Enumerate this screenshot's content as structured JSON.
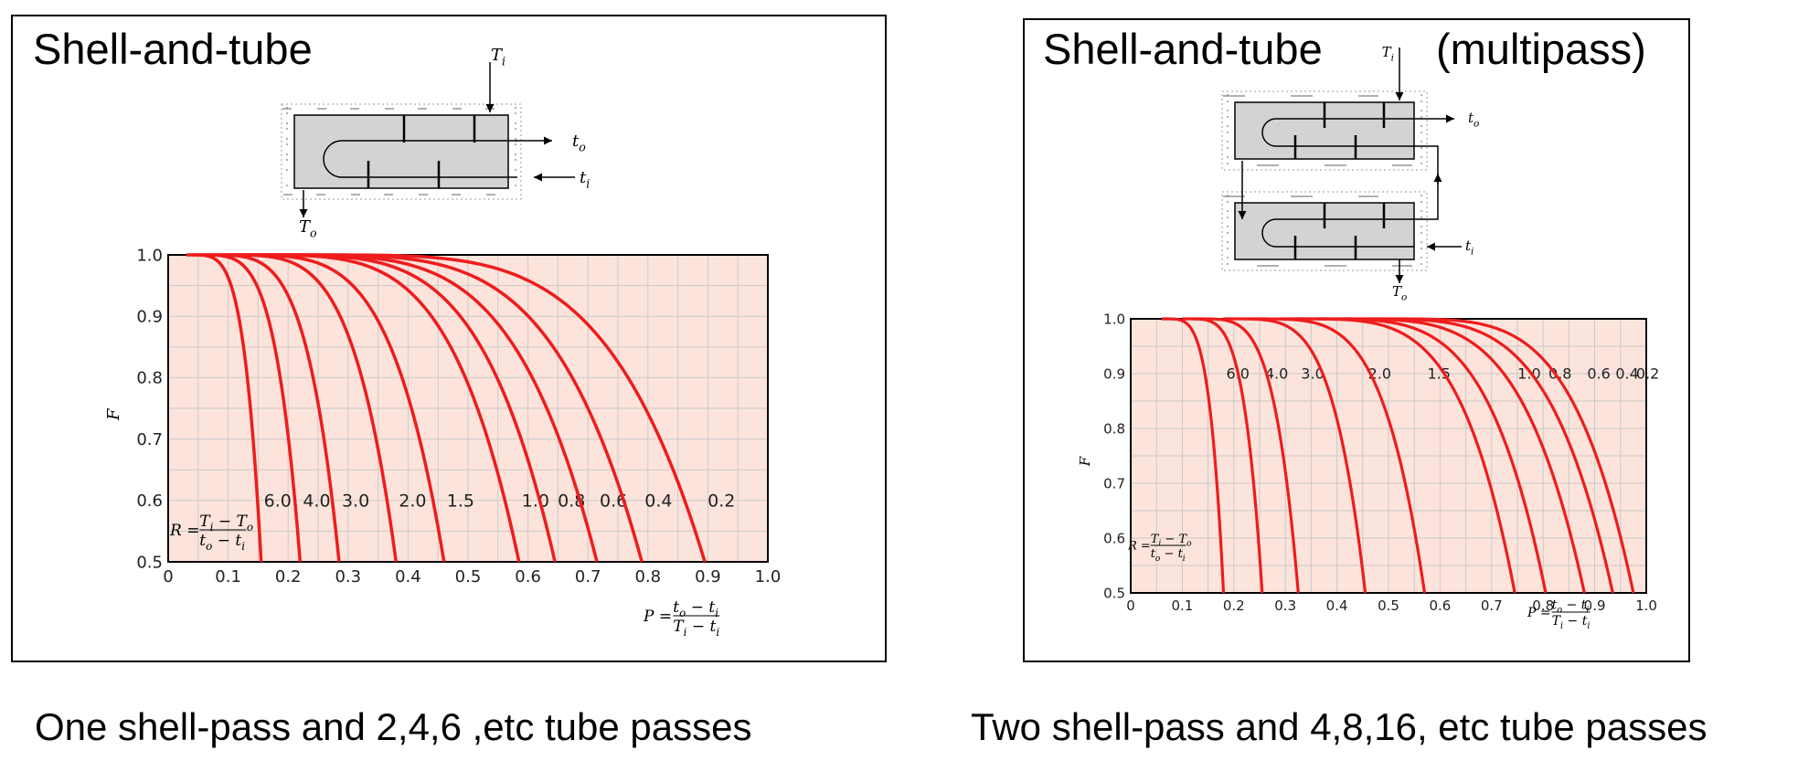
{
  "panels": {
    "left": {
      "title": "Shell-and-tube",
      "caption": "One shell-pass and 2,4,6 ,etc tube passes",
      "diagram": {
        "Ti": "T",
        "Ti_sub": "i",
        "To": "T",
        "To_sub": "o",
        "to": "t",
        "to_sub": "o",
        "ti": "t",
        "ti_sub": "i"
      }
    },
    "right": {
      "title": "Shell-and-tube",
      "title_suffix": "(multipass)",
      "caption": "Two shell-pass and 4,8,16, etc tube passes",
      "diagram": {
        "Ti": "T",
        "Ti_sub": "i",
        "To": "T",
        "To_sub": "o",
        "to": "t",
        "to_sub": "o",
        "ti": "t",
        "ti_sub": "i"
      }
    }
  },
  "colors": {
    "curve": "#ee1c1c",
    "plot_bg": "#fce4dc",
    "grid": "#c9c9c9",
    "shell_fill": "#d3d3d3"
  },
  "chart_data": [
    {
      "type": "line",
      "ylabel": "F",
      "xlim": [
        0,
        1.0
      ],
      "ylim": [
        0.5,
        1.0
      ],
      "xticks": [
        "0",
        "0.1",
        "0.2",
        "0.3",
        "0.4",
        "0.5",
        "0.6",
        "0.7",
        "0.8",
        "0.9",
        "1.0"
      ],
      "yticks": [
        "0.5",
        "0.6",
        "0.7",
        "0.8",
        "0.9",
        "1.0"
      ],
      "grid": true,
      "r_formula": {
        "lhs": "R =",
        "num": "T",
        "num_sub1": "i",
        "num_mid": " − T",
        "num_sub2": "o",
        "den": "t",
        "den_sub1": "o",
        "den_mid": " − t",
        "den_sub2": "i"
      },
      "p_formula": {
        "lhs": "P =",
        "num": "t",
        "num_sub1": "o",
        "num_mid": " − t",
        "num_sub2": "i",
        "den": "T",
        "den_sub1": "i",
        "den_mid": " − t",
        "den_sub2": "i"
      },
      "series": [
        {
          "name": "6.0",
          "start": 0.03,
          "end": 0.155
        },
        {
          "name": "4.0",
          "start": 0.04,
          "end": 0.22
        },
        {
          "name": "3.0",
          "start": 0.05,
          "end": 0.285
        },
        {
          "name": "2.0",
          "start": 0.07,
          "end": 0.38
        },
        {
          "name": "1.5",
          "start": 0.08,
          "end": 0.46
        },
        {
          "name": "1.0",
          "start": 0.1,
          "end": 0.585
        },
        {
          "name": "0.8",
          "start": 0.12,
          "end": 0.645
        },
        {
          "name": "0.6",
          "start": 0.13,
          "end": 0.715
        },
        {
          "name": "0.4",
          "start": 0.16,
          "end": 0.79
        },
        {
          "name": "0.2",
          "start": 0.2,
          "end": 0.895
        }
      ]
    },
    {
      "type": "line",
      "ylabel": "F",
      "xlim": [
        0,
        1.0
      ],
      "ylim": [
        0.5,
        1.0
      ],
      "xticks": [
        "0",
        "0.1",
        "0.2",
        "0.3",
        "0.4",
        "0.5",
        "0.6",
        "0.7",
        "0.8",
        "0.9",
        "1.0"
      ],
      "yticks": [
        "0.5",
        "0.6",
        "0.7",
        "0.8",
        "0.9",
        "1.0"
      ],
      "grid": true,
      "r_formula": {
        "lhs": "R =",
        "num": "T",
        "num_sub1": "i",
        "num_mid": " − T",
        "num_sub2": "o",
        "den": "t",
        "den_sub1": "o",
        "den_mid": " − t",
        "den_sub2": "i"
      },
      "p_formula": {
        "lhs": "P =",
        "num": "t",
        "num_sub1": "o",
        "num_mid": " − t",
        "num_sub2": "i",
        "den": "T",
        "den_sub1": "i",
        "den_mid": " − t",
        "den_sub2": "i"
      },
      "series": [
        {
          "name": "6.0",
          "start": 0.06,
          "end": 0.18
        },
        {
          "name": "4.0",
          "start": 0.1,
          "end": 0.255
        },
        {
          "name": "3.0",
          "start": 0.12,
          "end": 0.325
        },
        {
          "name": "2.0",
          "start": 0.18,
          "end": 0.455
        },
        {
          "name": "1.5",
          "start": 0.22,
          "end": 0.57
        },
        {
          "name": "1.0",
          "start": 0.29,
          "end": 0.745
        },
        {
          "name": "0.8",
          "start": 0.32,
          "end": 0.805
        },
        {
          "name": "0.6",
          "start": 0.36,
          "end": 0.88
        },
        {
          "name": "0.4",
          "start": 0.41,
          "end": 0.935
        },
        {
          "name": "0.2",
          "start": 0.47,
          "end": 0.975
        }
      ]
    }
  ]
}
